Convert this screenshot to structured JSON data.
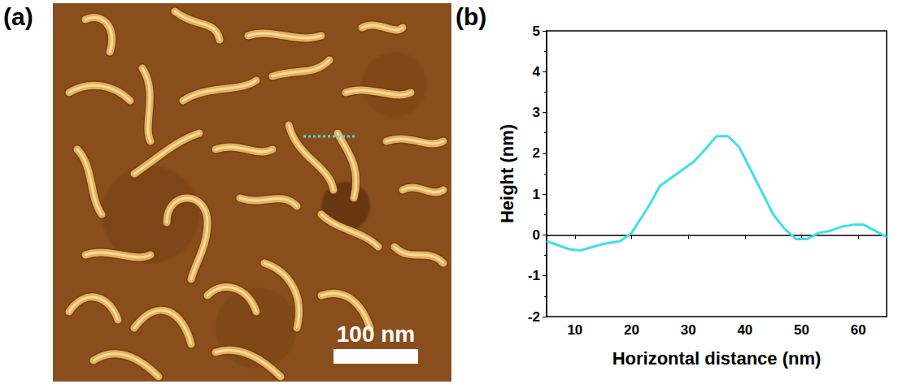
{
  "panels": [
    {
      "label": "(a)",
      "scale_bar": "100 nm"
    },
    {
      "label": "(b)"
    }
  ],
  "chart_data": {
    "type": "line",
    "x_label": "Horizontal distance (nm)",
    "y_label": "Height (nm)",
    "x": [
      5,
      7,
      9,
      11,
      13,
      15,
      18,
      20,
      23,
      25,
      28,
      31,
      33,
      35,
      37,
      39,
      41,
      43,
      45,
      47,
      49,
      51,
      53,
      55,
      57,
      59,
      61,
      63,
      65
    ],
    "values": [
      -0.15,
      -0.25,
      -0.35,
      -0.38,
      -0.3,
      -0.22,
      -0.15,
      0.05,
      0.7,
      1.2,
      1.5,
      1.8,
      2.1,
      2.42,
      2.42,
      2.15,
      1.6,
      1.05,
      0.5,
      0.15,
      -0.1,
      -0.1,
      0.05,
      0.1,
      0.2,
      0.25,
      0.25,
      0.1,
      -0.05
    ],
    "color": "#3fdfea",
    "xlim": [
      5,
      65
    ],
    "xticks": [
      10,
      20,
      30,
      40,
      50,
      60
    ],
    "ylim": [
      -2,
      5
    ],
    "yticks": [
      -2,
      -1,
      0,
      1,
      2,
      3,
      4,
      5
    ],
    "grid": false
  }
}
